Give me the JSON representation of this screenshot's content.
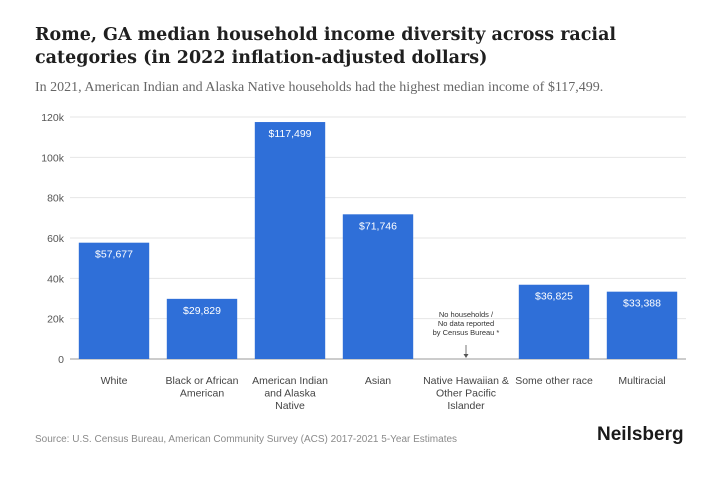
{
  "header": {
    "title": "Rome, GA median household income diversity across racial categories (in 2022 inflation-adjusted dollars)",
    "subtitle": "In 2021, American Indian and Alaska Native households had the highest median income of $117,499."
  },
  "footer": {
    "source": "Source: U.S. Census Bureau, American Community Survey (ACS) 2017-2021 5-Year Estimates",
    "brand": "Neilsberg"
  },
  "colors": {
    "bar": "#2f6fd8",
    "grid": "#e6e6e6",
    "axis": "#999999"
  },
  "chart_data": {
    "type": "bar",
    "title": "Rome, GA median household income diversity across racial categories (in 2022 inflation-adjusted dollars)",
    "xlabel": "",
    "ylabel": "",
    "ylim": [
      0,
      120000
    ],
    "yticks": [
      {
        "value": 0,
        "label": "0"
      },
      {
        "value": 20000,
        "label": "20k"
      },
      {
        "value": 40000,
        "label": "40k"
      },
      {
        "value": 60000,
        "label": "60k"
      },
      {
        "value": 80000,
        "label": "80k"
      },
      {
        "value": 100000,
        "label": "100k"
      },
      {
        "value": 120000,
        "label": "120k"
      }
    ],
    "grid": true,
    "categories": [
      [
        "White"
      ],
      [
        "Black or African",
        "American"
      ],
      [
        "American Indian",
        "and Alaska",
        "Native"
      ],
      [
        "Asian"
      ],
      [
        "Native Hawaiian &",
        "Other Pacific",
        "Islander"
      ],
      [
        "Some other race"
      ],
      [
        "Multiracial"
      ]
    ],
    "values": [
      57677,
      29829,
      117499,
      71746,
      null,
      36825,
      33388
    ],
    "value_labels": [
      "$57,677",
      "$29,829",
      "$117,499",
      "$71,746",
      "",
      "$36,825",
      "$33,388"
    ],
    "annotations": [
      {
        "category_index": 4,
        "lines": [
          "No households /",
          "No data reported",
          "by Census Bureau *"
        ]
      }
    ]
  }
}
